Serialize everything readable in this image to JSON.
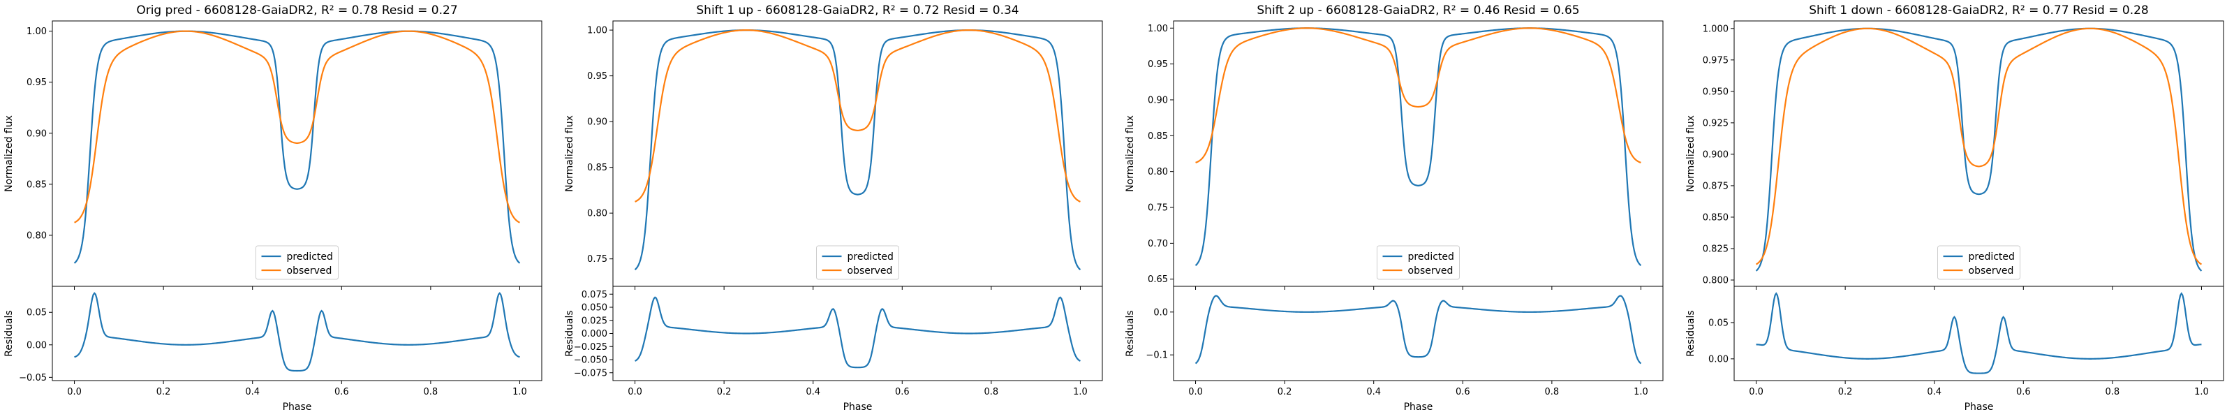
{
  "figure": {
    "colors": {
      "predicted": "#1f77b4",
      "observed": "#ff7f0e"
    }
  },
  "chart_data": [
    {
      "type": "line",
      "title": "Orig pred - 6608128-GaiaDR2, R² = 0.78 Resid = 0.27",
      "top": {
        "ylabel": "Normalized flux",
        "ylim": [
          0.75,
          1.01
        ],
        "yticks": [
          "0.80",
          "0.85",
          "0.90",
          "0.95",
          "1.00"
        ],
        "legend": "lower-center",
        "series": [
          {
            "name": "predicted",
            "min": 0.77,
            "eclipse": 0.845
          },
          {
            "name": "observed",
            "min": 0.805,
            "eclipse": 0.89
          }
        ]
      },
      "bottom": {
        "ylabel": "Residuals",
        "ylim": [
          -0.055,
          0.09
        ],
        "yticks": [
          "−0.05",
          "0.00",
          "0.05"
        ],
        "peak": 0.08,
        "inner_peak": 0.05,
        "trough": -0.045,
        "edge": -0.035
      },
      "xlabel": "Phase",
      "xticks": [
        "0.0",
        "0.2",
        "0.4",
        "0.6",
        "0.8",
        "1.0"
      ]
    },
    {
      "type": "line",
      "title": "Shift 1 up - 6608128-GaiaDR2, R² = 0.72 Resid = 0.34",
      "top": {
        "ylabel": "Normalized flux",
        "ylim": [
          0.72,
          1.01
        ],
        "yticks": [
          "0.75",
          "0.80",
          "0.85",
          "0.90",
          "0.95",
          "1.00"
        ],
        "legend": "lower-center",
        "series": [
          {
            "name": "predicted",
            "min": 0.735,
            "eclipse": 0.82
          },
          {
            "name": "observed",
            "min": 0.805,
            "eclipse": 0.89
          }
        ]
      },
      "bottom": {
        "ylabel": "Residuals",
        "ylim": [
          -0.09,
          0.09
        ],
        "yticks": [
          "−0.075",
          "−0.050",
          "−0.025",
          "0.000",
          "0.025",
          "0.050",
          "0.075"
        ],
        "peak": 0.07,
        "inner_peak": 0.045,
        "trough": -0.07,
        "edge": -0.07
      },
      "xlabel": "Phase",
      "xticks": [
        "0.0",
        "0.2",
        "0.4",
        "0.6",
        "0.8",
        "1.0"
      ]
    },
    {
      "type": "line",
      "title": "Shift 2 up - 6608128-GaiaDR2, R² = 0.46 Resid = 0.65",
      "top": {
        "ylabel": "Normalized flux",
        "ylim": [
          0.64,
          1.01
        ],
        "yticks": [
          "0.65",
          "0.70",
          "0.75",
          "0.80",
          "0.85",
          "0.90",
          "0.95",
          "1.00"
        ],
        "legend": "lower-center",
        "series": [
          {
            "name": "predicted",
            "min": 0.665,
            "eclipse": 0.78
          },
          {
            "name": "observed",
            "min": 0.805,
            "eclipse": 0.89
          }
        ]
      },
      "bottom": {
        "ylabel": "Residuals",
        "ylim": [
          -0.16,
          0.06
        ],
        "yticks": [
          "−0.1",
          "0.0"
        ],
        "peak": 0.04,
        "inner_peak": 0.025,
        "trough": -0.11,
        "edge": -0.14
      },
      "xlabel": "Phase",
      "xticks": [
        "0.0",
        "0.2",
        "0.4",
        "0.6",
        "0.8",
        "1.0"
      ]
    },
    {
      "type": "line",
      "title": "Shift 1 down - 6608128-GaiaDR2, R² = 0.77 Resid = 0.28",
      "top": {
        "ylabel": "Normalized flux",
        "ylim": [
          0.795,
          1.006
        ],
        "yticks": [
          "0.800",
          "0.825",
          "0.850",
          "0.875",
          "0.900",
          "0.925",
          "0.950",
          "0.975",
          "1.000"
        ],
        "legend": "lower-center",
        "series": [
          {
            "name": "predicted",
            "min": 0.805,
            "eclipse": 0.868
          },
          {
            "name": "observed",
            "min": 0.805,
            "eclipse": 0.89
          }
        ]
      },
      "bottom": {
        "ylabel": "Residuals",
        "ylim": [
          -0.03,
          0.1
        ],
        "yticks": [
          "0.00",
          "0.05"
        ],
        "peak": 0.09,
        "inner_peak": 0.055,
        "trough": -0.025,
        "edge": 0.005
      },
      "xlabel": "Phase",
      "xticks": [
        "0.0",
        "0.2",
        "0.4",
        "0.6",
        "0.8",
        "1.0"
      ]
    }
  ]
}
